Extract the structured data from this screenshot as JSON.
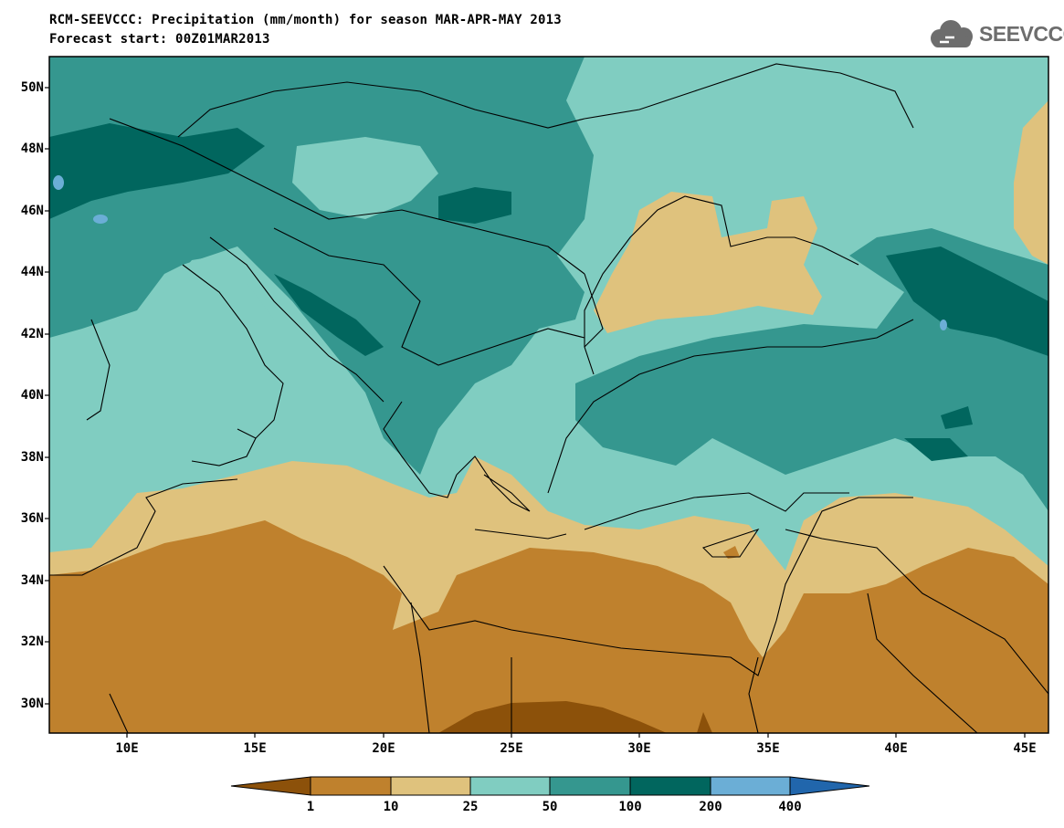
{
  "header": {
    "title_line1": "RCM-SEEVCCC: Precipitation (mm/month) for season MAR-APR-MAY 2013",
    "title_line2": "Forecast start: 00Z01MAR2013"
  },
  "logo": {
    "text": "SEEVCCC",
    "icon": "cloud-logo-icon"
  },
  "map": {
    "lat_labels": [
      "50N",
      "48N",
      "46N",
      "44N",
      "42N",
      "40N",
      "38N",
      "36N",
      "34N",
      "32N",
      "30N"
    ],
    "lon_labels": [
      "10E",
      "15E",
      "20E",
      "25E",
      "30E",
      "35E",
      "40E",
      "45E"
    ],
    "colors": {
      "lt1": "#8c510a",
      "1-10": "#bf812d",
      "10-25": "#dfc27d",
      "25-50": "#80cdc1",
      "50-100": "#35978f",
      "100-200": "#01665e",
      "200-400": "#6baed6",
      "gt400": "#2166ac"
    }
  },
  "colorbar": {
    "labels": [
      "1",
      "10",
      "25",
      "50",
      "100",
      "200",
      "400"
    ],
    "colors": [
      "#8c510a",
      "#bf812d",
      "#dfc27d",
      "#80cdc1",
      "#35978f",
      "#01665e",
      "#6baed6",
      "#2166ac"
    ]
  }
}
